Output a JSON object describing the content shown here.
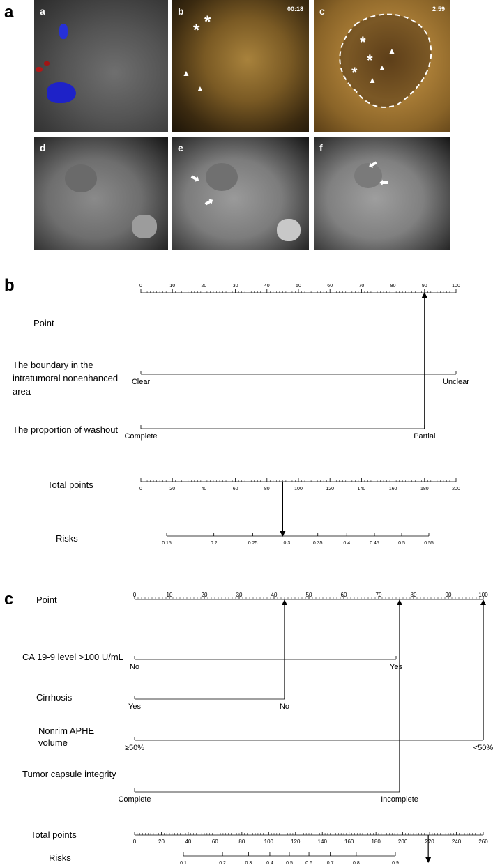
{
  "panel_letters": {
    "a": "a",
    "b": "b",
    "c": "c"
  },
  "images": [
    {
      "id": "a",
      "label": "a",
      "timestamp": "",
      "markers": []
    },
    {
      "id": "b",
      "label": "b",
      "timestamp": "00:18",
      "markers": [
        "*",
        "*",
        "▲",
        "▲"
      ]
    },
    {
      "id": "c",
      "label": "c",
      "timestamp": "2:59",
      "markers": [
        "*",
        "*",
        "*",
        "▲",
        "▲",
        "▲"
      ]
    },
    {
      "id": "d",
      "label": "d",
      "timestamp": "",
      "markers": []
    },
    {
      "id": "e",
      "label": "e",
      "timestamp": "",
      "markers": [
        "➡",
        "➡"
      ]
    },
    {
      "id": "f",
      "label": "f",
      "timestamp": "",
      "markers": [
        "➡",
        "➡"
      ]
    }
  ],
  "chart_data": [
    {
      "type": "nomogram",
      "panel": "b",
      "axes": [
        {
          "name": "Point",
          "ticks": [
            0,
            10,
            20,
            30,
            40,
            50,
            60,
            70,
            80,
            90,
            100
          ],
          "range": [
            0,
            100
          ]
        },
        {
          "name": "The boundary in the intratumoral nonenhanced area",
          "levels": [
            {
              "label": "Clear",
              "points": 0
            },
            {
              "label": "Unclear",
              "points": 100
            }
          ]
        },
        {
          "name": "The proportion of washout",
          "levels": [
            {
              "label": "Complete",
              "points": 0
            },
            {
              "label": "Partial",
              "points": 90
            }
          ]
        },
        {
          "name": "Total points",
          "ticks": [
            0,
            20,
            40,
            60,
            80,
            100,
            120,
            140,
            160,
            180,
            200
          ],
          "range": [
            0,
            200
          ]
        },
        {
          "name": "Risks",
          "ticks": [
            0.15,
            0.2,
            0.25,
            0.3,
            0.35,
            0.4,
            0.45,
            0.5,
            0.55
          ],
          "tick_labels": [
            "0.15",
            "0.2",
            "0.25",
            "0.3",
            "0.35",
            "0.4",
            "0.45",
            "0.5",
            "0.55"
          ]
        }
      ],
      "example": {
        "points": 90,
        "total_points": 90,
        "risk": 0.295
      }
    },
    {
      "type": "nomogram",
      "panel": "c",
      "axes": [
        {
          "name": "Point",
          "ticks": [
            0,
            10,
            20,
            30,
            40,
            50,
            60,
            70,
            80,
            90,
            100
          ],
          "range": [
            0,
            100
          ]
        },
        {
          "name": "CA 19-9 level >100 U/mL",
          "levels": [
            {
              "label": "No",
              "points": 0
            },
            {
              "label": "Yes",
              "points": 75
            }
          ]
        },
        {
          "name": "Cirrhosis",
          "levels": [
            {
              "label": "Yes",
              "points": 0
            },
            {
              "label": "No",
              "points": 43
            }
          ]
        },
        {
          "name": "Nonrim APHE volume",
          "levels": [
            {
              "label": "≥50%",
              "points": 0
            },
            {
              "label": "<50%",
              "points": 100
            }
          ]
        },
        {
          "name": "Tumor capsule integrity",
          "levels": [
            {
              "label": "Complete",
              "points": 0
            },
            {
              "label": "Incomplete",
              "points": 76
            }
          ]
        },
        {
          "name": "Total points",
          "ticks": [
            0,
            20,
            40,
            60,
            80,
            100,
            120,
            140,
            160,
            180,
            200,
            220,
            240,
            260
          ],
          "range": [
            0,
            260
          ]
        },
        {
          "name": "Risks",
          "ticks": [
            0.1,
            0.2,
            0.3,
            0.4,
            0.5,
            0.6,
            0.7,
            0.8,
            0.9
          ],
          "tick_labels": [
            "0.1",
            "0.2",
            "0.3",
            "0.4",
            "0.5",
            "0.6",
            "0.7",
            "0.8",
            "0.9"
          ]
        }
      ],
      "example": {
        "points": [
          43,
          76,
          100
        ],
        "total_points": 219
      }
    }
  ]
}
